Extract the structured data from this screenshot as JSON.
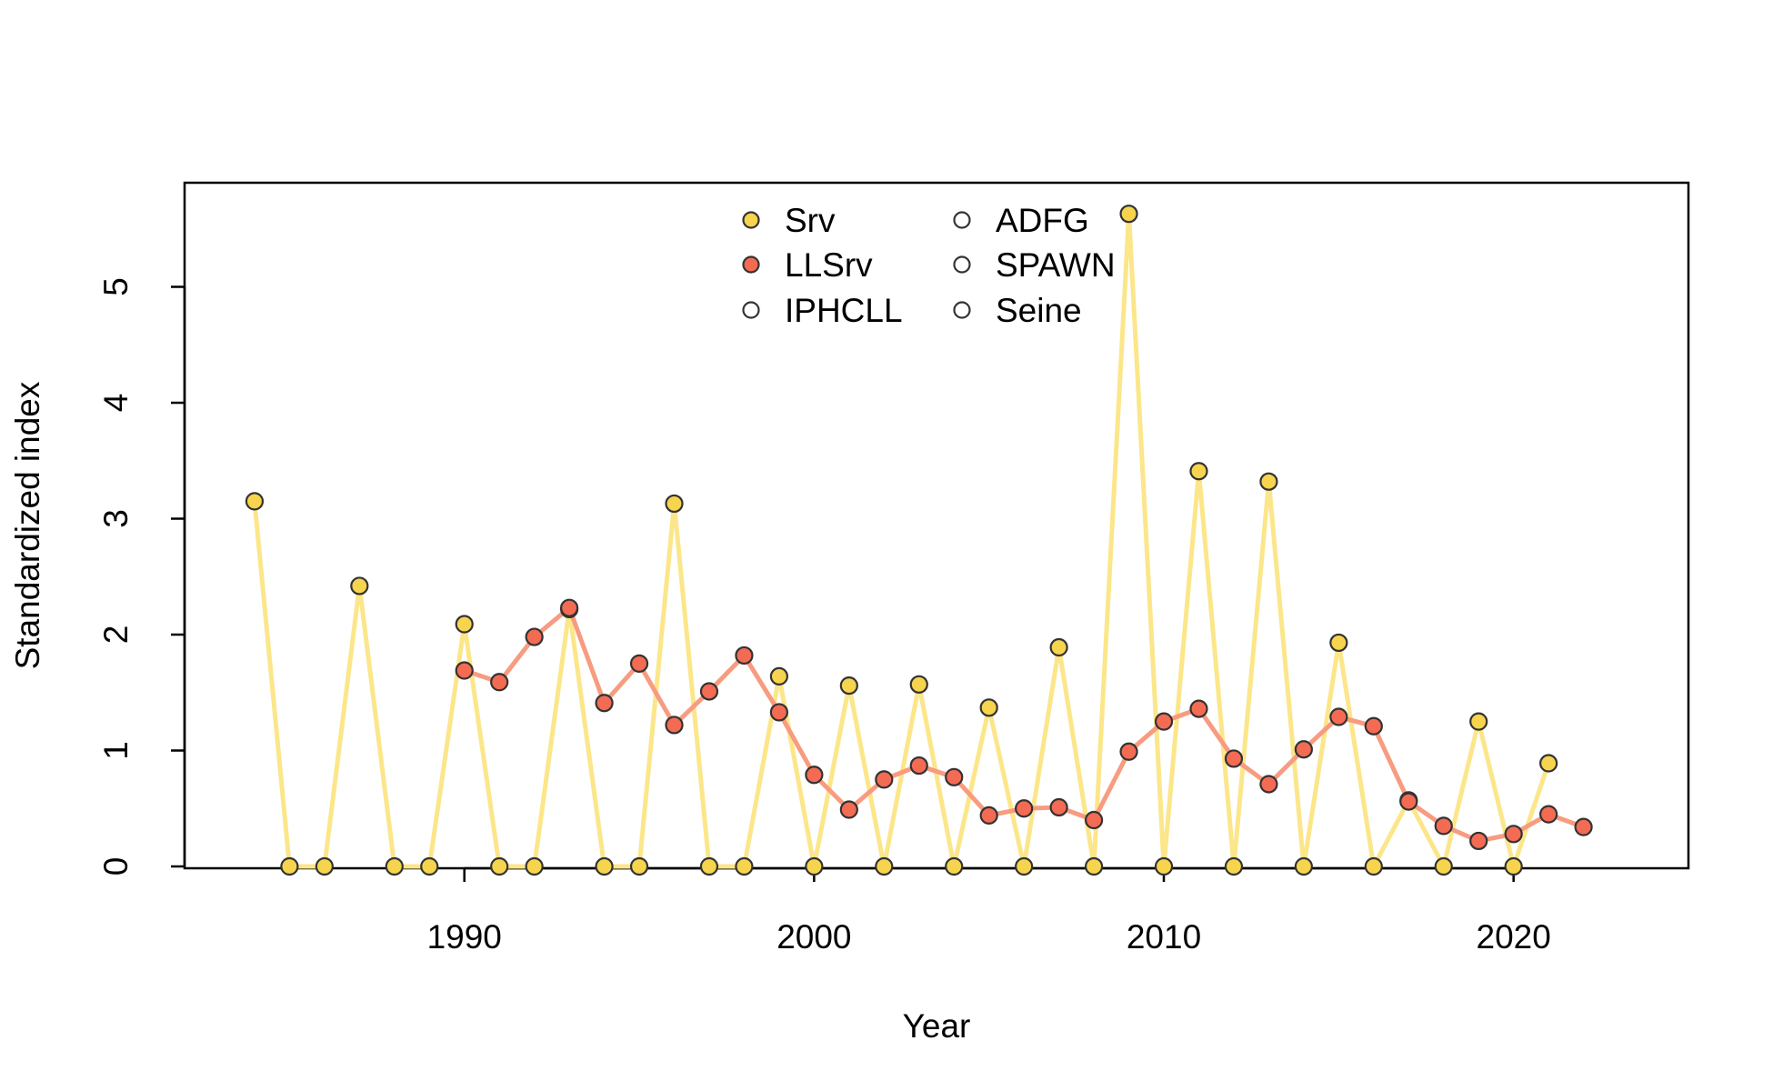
{
  "chart_data": {
    "type": "line",
    "title": "",
    "xlabel": "Year",
    "ylabel": "Standardized index",
    "xlim": [
      1982,
      2025
    ],
    "ylim": [
      0,
      5.9
    ],
    "xticks": [
      1990,
      2000,
      2010,
      2020
    ],
    "yticks": [
      0,
      1,
      2,
      3,
      4,
      5
    ],
    "grid": false,
    "legend": {
      "placement": "top-center",
      "columns": 2,
      "entries": [
        "Srv",
        "LLSrv",
        "IPHCLL",
        "ADFG",
        "SPAWN",
        "Seine"
      ]
    },
    "series": [
      {
        "name": "Srv",
        "line_color": "#FCE68A",
        "point_color": "#F7D44D",
        "x": [
          1984,
          1985,
          1986,
          1987,
          1988,
          1989,
          1990,
          1991,
          1992,
          1993,
          1994,
          1995,
          1996,
          1997,
          1998,
          1999,
          2000,
          2001,
          2002,
          2003,
          2004,
          2005,
          2006,
          2007,
          2008,
          2009,
          2010,
          2011,
          2012,
          2013,
          2014,
          2015,
          2016,
          2017,
          2018,
          2019,
          2020,
          2021
        ],
        "y": [
          3.15,
          0,
          0,
          2.42,
          0,
          0,
          2.09,
          0,
          0,
          2.22,
          0,
          0,
          3.13,
          0,
          0,
          1.64,
          0,
          1.56,
          0,
          1.57,
          0,
          1.37,
          0,
          1.89,
          0,
          5.63,
          0,
          3.41,
          0,
          3.32,
          0,
          1.93,
          0,
          0.57,
          0,
          1.25,
          0,
          0.89
        ]
      },
      {
        "name": "LLSrv",
        "line_color": "#F79C80",
        "point_color": "#F46B53",
        "x": [
          1990,
          1991,
          1992,
          1993,
          1994,
          1995,
          1996,
          1997,
          1998,
          1999,
          2000,
          2001,
          2002,
          2003,
          2004,
          2005,
          2006,
          2007,
          2008,
          2009,
          2010,
          2011,
          2012,
          2013,
          2014,
          2015,
          2016,
          2017,
          2018,
          2019,
          2020,
          2021,
          2022
        ],
        "y": [
          1.69,
          1.59,
          1.98,
          2.23,
          1.41,
          1.75,
          1.22,
          1.51,
          1.82,
          1.33,
          0.79,
          0.49,
          0.75,
          0.87,
          0.77,
          0.44,
          0.5,
          0.51,
          0.4,
          0.99,
          1.25,
          1.36,
          0.93,
          0.71,
          1.01,
          1.29,
          1.21,
          0.56,
          0.35,
          0.22,
          0.28,
          0.45,
          0.34
        ]
      },
      {
        "name": "IPHCLL",
        "point_color": "#AAAAAA",
        "x": [],
        "y": []
      },
      {
        "name": "ADFG",
        "point_color": "#AAAAAA",
        "x": [],
        "y": []
      },
      {
        "name": "SPAWN",
        "point_color": "#AAAAAA",
        "x": [],
        "y": []
      },
      {
        "name": "Seine",
        "point_color": "#AAAAAA",
        "x": [],
        "y": []
      }
    ]
  }
}
